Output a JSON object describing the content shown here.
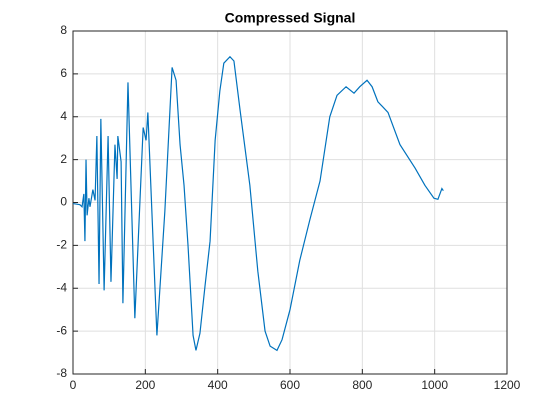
{
  "chart_data": {
    "type": "line",
    "title": "Compressed Signal",
    "series": [
      {
        "color": "#0072bd",
        "x": [
          0,
          19,
          25,
          30,
          33,
          36,
          39,
          44,
          47,
          55,
          61,
          66,
          72,
          77,
          86,
          97,
          105,
          116,
          122,
          124,
          133,
          138,
          152,
          171,
          194,
          202,
          207,
          232,
          254,
          274,
          285,
          296,
          307,
          318,
          332,
          340,
          351,
          365,
          379,
          393,
          406,
          417,
          434,
          445,
          462,
          489,
          511,
          531,
          545,
          564,
          578,
          600,
          627,
          655,
          683,
          710,
          730,
          755,
          777,
          793,
          813,
          827,
          843,
          871,
          904,
          946,
          973,
          998,
          1009,
          1020,
          1024
        ],
        "values": [
          -0.05,
          -0.1,
          -0.2,
          0.4,
          -1.8,
          2,
          -0.6,
          0.2,
          -0.2,
          0.6,
          0.1,
          3.1,
          -3.8,
          3.9,
          -4.1,
          3.1,
          -3.7,
          2.7,
          1.1,
          3.1,
          1.9,
          -4.7,
          5.6,
          -5.4,
          3.5,
          2.9,
          4.2,
          -6.2,
          -0.4,
          6.3,
          5.7,
          2.7,
          0.8,
          -2,
          -6.2,
          -6.9,
          -6.1,
          -3.9,
          -1.8,
          2.9,
          5.2,
          6.5,
          6.8,
          6.6,
          4.3,
          0.8,
          -3.2,
          -6,
          -6.7,
          -6.9,
          -6.4,
          -5,
          -2.7,
          -0.8,
          1,
          4,
          5,
          5.4,
          5.1,
          5.4,
          5.7,
          5.4,
          4.7,
          4.2,
          2.7,
          1.6,
          0.8,
          0.2,
          0.15,
          0.65,
          0.55
        ]
      }
    ],
    "xlim": [
      0,
      1200
    ],
    "xticks": [
      0,
      200,
      400,
      600,
      800,
      1000,
      1200
    ],
    "ylim": [
      -8,
      8
    ],
    "yticks": [
      -8,
      -6,
      -4,
      -2,
      0,
      2,
      4,
      6,
      8
    ],
    "grid": true
  }
}
